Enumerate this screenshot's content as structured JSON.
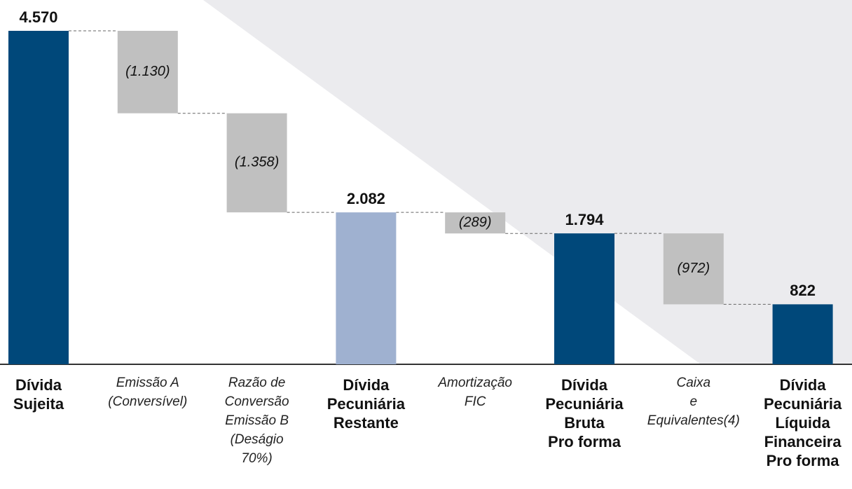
{
  "chart_data": {
    "type": "waterfall",
    "categories": [
      "Dívida\nSujeita",
      "Emissão A\n(Conversível)",
      "Razão de\nConversão\nEmissão B\n(Deságio\n70%)",
      "Dívida\nPecuniária\nRestante",
      "Amortização\nFIC",
      "Dívida\nPecuniária\nBruta\nPro forma",
      "Caixa\ne\nEquivalentes(4)",
      "Dívida\nPecuniária\nLíquida\nFinanceira\nPro forma"
    ],
    "measure": [
      "absolute",
      "relative",
      "relative",
      "absolute",
      "relative",
      "absolute",
      "relative",
      "absolute"
    ],
    "values": [
      4570,
      -1130,
      -1358,
      2082,
      -289,
      1794,
      -972,
      822
    ],
    "value_labels": [
      "4.570",
      "(1.130)",
      "(1.358)",
      "2.082",
      "(289)",
      "1.794",
      "(972)",
      "822"
    ],
    "colors": [
      "#00487a",
      "#c0c0c0",
      "#c0c0c0",
      "#9fb1d0",
      "#c0c0c0",
      "#00487a",
      "#c0c0c0",
      "#00487a"
    ]
  }
}
